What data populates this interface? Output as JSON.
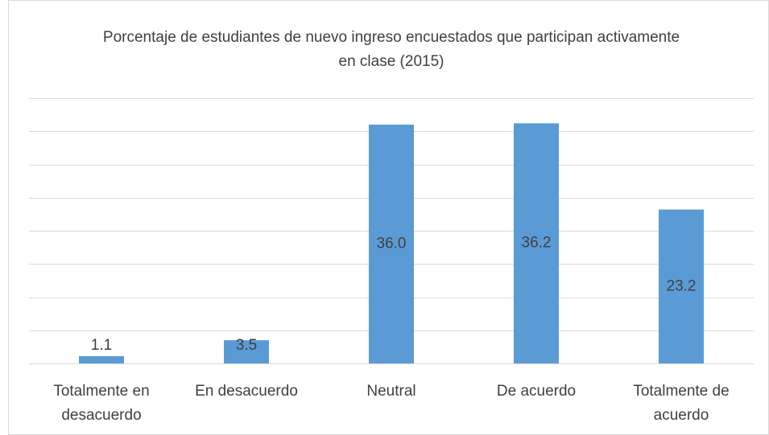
{
  "chart_data": {
    "type": "bar",
    "title": "Porcentaje de estudiantes de nuevo ingreso encuestados que participan activamente en clase (2015)",
    "categories": [
      "Totalmente en desacuerdo",
      "En desacuerdo",
      "Neutral",
      "De acuerdo",
      "Totalmente de acuerdo"
    ],
    "values": [
      1.1,
      3.5,
      36.0,
      36.2,
      23.2
    ],
    "value_labels": [
      "1.1",
      "3.5",
      "36.0",
      "36.2",
      "23.2"
    ],
    "color": "#5b9bd5",
    "ylim": [
      0,
      40
    ],
    "yticks": [
      0,
      5,
      10,
      15,
      20,
      25,
      30,
      35,
      40
    ],
    "grid": true
  }
}
